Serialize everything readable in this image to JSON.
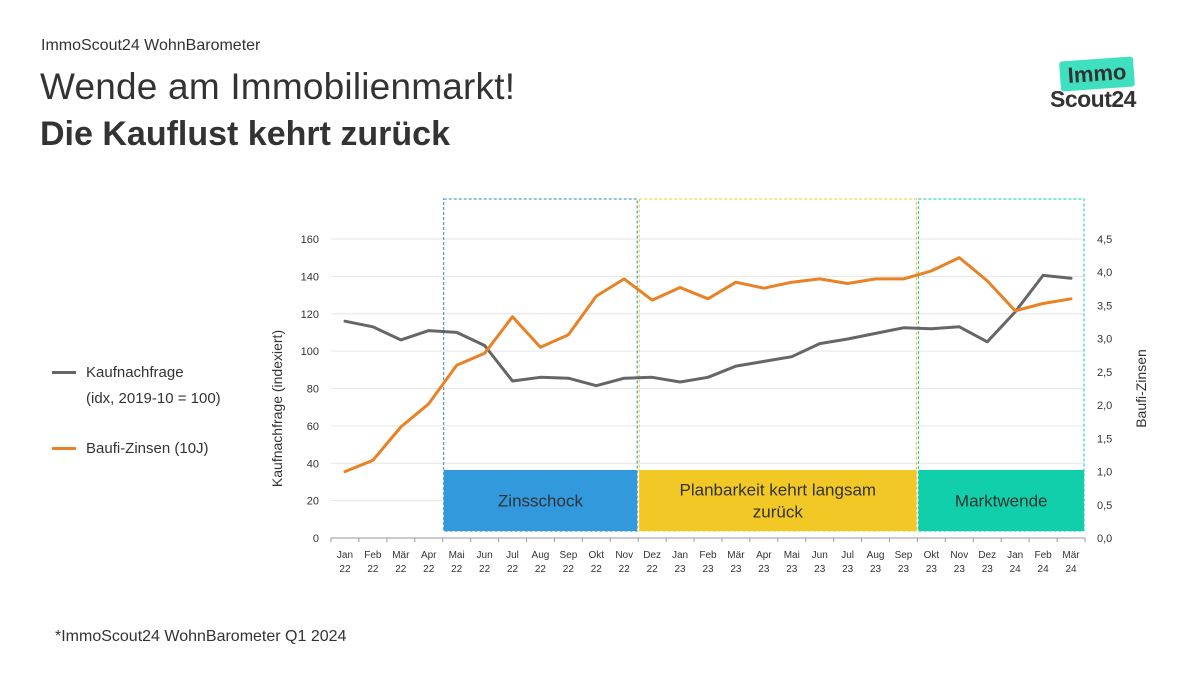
{
  "header": {
    "supertitle": "ImmoScout24 WohnBarometer",
    "title_line1": "Wende am Immobilienmarkt!",
    "title_line2": "Die Kauflust kehrt zurück"
  },
  "logo": {
    "top": "Immo",
    "bottom": "Scout24",
    "accent": "#3fe0c0"
  },
  "legend": {
    "items": [
      {
        "label": "Kaufnachfrage",
        "label2": "(idx, 2019-10 = 100)",
        "color": "#666666"
      },
      {
        "label": "Baufi-Zinsen (10J)",
        "label2": "",
        "color": "#e98125"
      }
    ]
  },
  "footnote": "*ImmoScout24 WohnBarometer Q1 2024",
  "chart_data": {
    "type": "line",
    "ylabel": "Kaufnachfrage (indexiert)",
    "y2label": "Baufi-Zinsen",
    "ylim": [
      0,
      160
    ],
    "yticks": [
      "0",
      "20",
      "40",
      "60",
      "80",
      "100",
      "120",
      "140",
      "160"
    ],
    "y2lim": [
      0,
      4.5
    ],
    "y2ticks": [
      "0,0",
      "0,5",
      "1,0",
      "1,5",
      "2,0",
      "2,5",
      "3,0",
      "3,5",
      "4,0",
      "4,5"
    ],
    "grid": true,
    "categories": [
      [
        "Jan",
        "22"
      ],
      [
        "Feb",
        "22"
      ],
      [
        "Mär",
        "22"
      ],
      [
        "Apr",
        "22"
      ],
      [
        "Mai",
        "22"
      ],
      [
        "Jun",
        "22"
      ],
      [
        "Jul",
        "22"
      ],
      [
        "Aug",
        "22"
      ],
      [
        "Sep",
        "22"
      ],
      [
        "Okt",
        "22"
      ],
      [
        "Nov",
        "22"
      ],
      [
        "Dez",
        "22"
      ],
      [
        "Jan",
        "23"
      ],
      [
        "Feb",
        "23"
      ],
      [
        "Mär",
        "23"
      ],
      [
        "Apr",
        "23"
      ],
      [
        "Mai",
        "23"
      ],
      [
        "Jun",
        "23"
      ],
      [
        "Jul",
        "23"
      ],
      [
        "Aug",
        "23"
      ],
      [
        "Sep",
        "23"
      ],
      [
        "Okt",
        "23"
      ],
      [
        "Nov",
        "23"
      ],
      [
        "Dez",
        "23"
      ],
      [
        "Jan",
        "24"
      ],
      [
        "Feb",
        "24"
      ],
      [
        "Mär",
        "24"
      ]
    ],
    "series": [
      {
        "name": "Kaufnachfrage",
        "axis": "left",
        "color": "#666666",
        "values": [
          116,
          113,
          106,
          111,
          110,
          103,
          84,
          86,
          85.5,
          81.5,
          85.5,
          86,
          83.5,
          86,
          92,
          94.5,
          97,
          104,
          106.5,
          109.5,
          112.5,
          112,
          113,
          105,
          121,
          140.5,
          139
        ]
      },
      {
        "name": "Baufi-Zinsen (10J)",
        "axis": "right",
        "color": "#e98125",
        "values": [
          1.0,
          1.17,
          1.67,
          2.02,
          2.6,
          2.78,
          3.33,
          2.87,
          3.06,
          3.64,
          3.9,
          3.58,
          3.77,
          3.6,
          3.85,
          3.76,
          3.85,
          3.9,
          3.83,
          3.9,
          3.9,
          4.02,
          4.22,
          3.87,
          3.42,
          3.53,
          3.6
        ]
      }
    ],
    "phases": [
      {
        "label": "Zinsschock",
        "from": 3.5,
        "to": 10.5,
        "color": "#3399dd",
        "border": "#2a89c7"
      },
      {
        "label": "Planbarkeit kehrt langsam zurück",
        "from": 10.5,
        "to": 20.5,
        "color": "#f2c827",
        "border": "#f2c827"
      },
      {
        "label": "Marktwende",
        "from": 20.5,
        "to": 26.5,
        "color": "#11cfaa",
        "border": "#11cfaa"
      }
    ]
  }
}
